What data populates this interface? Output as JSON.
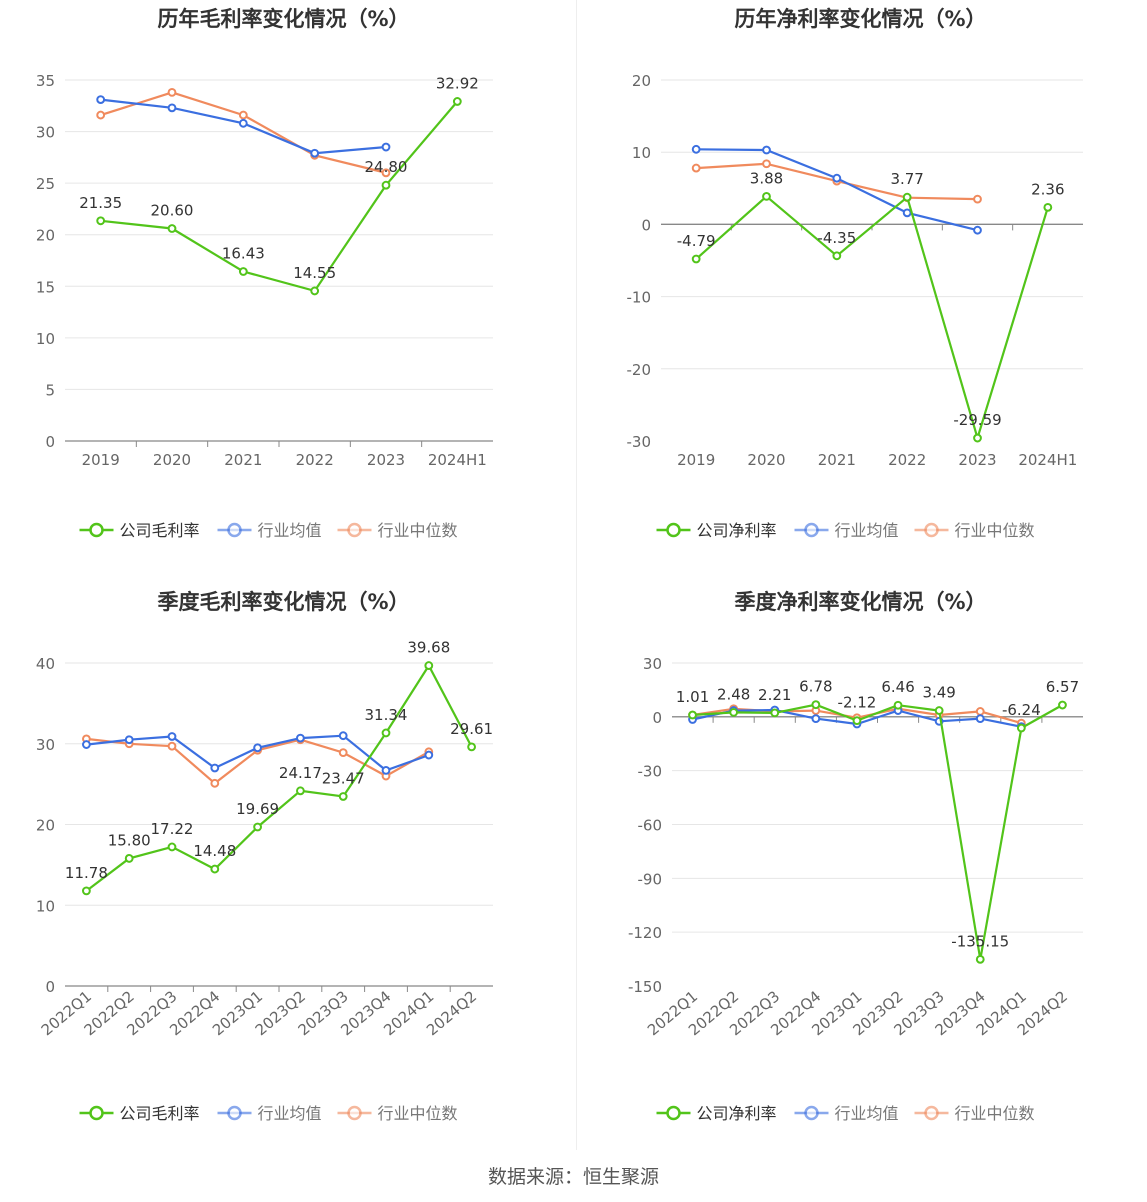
{
  "source": "数据来源：恒生聚源",
  "colors": {
    "company": "#52c41a",
    "industry_avg": "#3b6fe0",
    "industry_median": "#f08a5d"
  },
  "chart_data": [
    {
      "type": "line",
      "title": "历年毛利率变化情况（%）",
      "categories": [
        "2019",
        "2020",
        "2021",
        "2022",
        "2023",
        "2024H1"
      ],
      "ylim": [
        0,
        35
      ],
      "yticks": [
        0,
        5,
        10,
        15,
        20,
        25,
        30,
        35
      ],
      "x_label_rotated": false,
      "grid": true,
      "legend_position": "bottom",
      "series": [
        {
          "name": "公司毛利率",
          "key": "company",
          "values": [
            21.35,
            20.6,
            16.43,
            14.55,
            24.8,
            32.92
          ],
          "labels": [
            "21.35",
            "20.60",
            "16.43",
            "14.55",
            "24.80",
            "32.92"
          ]
        },
        {
          "name": "行业均值",
          "key": "industry_avg",
          "values": [
            33.1,
            32.3,
            30.8,
            27.9,
            28.5,
            null
          ]
        },
        {
          "name": "行业中位数",
          "key": "industry_median",
          "values": [
            31.6,
            33.8,
            31.6,
            27.7,
            26.0,
            null
          ]
        }
      ]
    },
    {
      "type": "line",
      "title": "历年净利率变化情况（%）",
      "categories": [
        "2019",
        "2020",
        "2021",
        "2022",
        "2023",
        "2024H1"
      ],
      "ylim": [
        -30,
        20
      ],
      "yticks": [
        -30,
        -20,
        -10,
        0,
        10,
        20
      ],
      "x_label_rotated": false,
      "grid": true,
      "legend_position": "bottom",
      "series": [
        {
          "name": "公司净利率",
          "key": "company",
          "values": [
            -4.79,
            3.88,
            -4.35,
            3.77,
            -29.59,
            2.36
          ],
          "labels": [
            "-4.79",
            "3.88",
            "-4.35",
            "3.77",
            "-29.59",
            "2.36"
          ]
        },
        {
          "name": "行业均值",
          "key": "industry_avg",
          "values": [
            10.4,
            10.3,
            6.4,
            1.6,
            -0.8,
            null
          ]
        },
        {
          "name": "行业中位数",
          "key": "industry_median",
          "values": [
            7.8,
            8.4,
            6.0,
            3.7,
            3.5,
            null
          ]
        }
      ]
    },
    {
      "type": "line",
      "title": "季度毛利率变化情况（%）",
      "categories": [
        "2022Q1",
        "2022Q2",
        "2022Q3",
        "2022Q4",
        "2023Q1",
        "2023Q2",
        "2023Q3",
        "2023Q4",
        "2024Q1",
        "2024Q2"
      ],
      "ylim": [
        0,
        40
      ],
      "yticks": [
        0,
        10,
        20,
        30,
        40
      ],
      "x_label_rotated": true,
      "grid": true,
      "legend_position": "bottom",
      "series": [
        {
          "name": "公司毛利率",
          "key": "company",
          "values": [
            11.78,
            15.8,
            17.22,
            14.48,
            19.69,
            24.17,
            23.47,
            31.34,
            39.68,
            29.61
          ],
          "labels": [
            "11.78",
            "15.80",
            "17.22",
            "14.48",
            "19.69",
            "24.17",
            "23.47",
            "31.34",
            "39.68",
            "29.61"
          ]
        },
        {
          "name": "行业均值",
          "key": "industry_avg",
          "values": [
            29.9,
            30.5,
            30.9,
            27.0,
            29.5,
            30.7,
            31.0,
            26.7,
            28.6,
            null
          ]
        },
        {
          "name": "行业中位数",
          "key": "industry_median",
          "values": [
            30.6,
            30.0,
            29.7,
            25.1,
            29.2,
            30.5,
            28.9,
            26.0,
            29.0,
            null
          ]
        }
      ]
    },
    {
      "type": "line",
      "title": "季度净利率变化情况（%）",
      "categories": [
        "2022Q1",
        "2022Q2",
        "2022Q3",
        "2022Q4",
        "2023Q1",
        "2023Q2",
        "2023Q3",
        "2023Q4",
        "2024Q1",
        "2024Q2"
      ],
      "ylim": [
        -150,
        30
      ],
      "yticks": [
        -150,
        -120,
        -90,
        -60,
        -30,
        0,
        30
      ],
      "x_label_rotated": true,
      "grid": true,
      "legend_position": "bottom",
      "series": [
        {
          "name": "公司净利率",
          "key": "company",
          "values": [
            1.01,
            2.48,
            2.21,
            6.78,
            -2.12,
            6.46,
            3.49,
            -135.15,
            -6.24,
            6.57
          ],
          "labels": [
            "1.01",
            "2.48",
            "2.21",
            "6.78",
            "-2.12",
            "6.46",
            "3.49",
            "-135.15",
            "-6.24",
            "6.57"
          ]
        },
        {
          "name": "行业均值",
          "key": "industry_avg",
          "values": [
            -1.5,
            3.5,
            3.8,
            -1.0,
            -4.0,
            3.5,
            -2.5,
            -1.0,
            -5.5,
            null
          ]
        },
        {
          "name": "行业中位数",
          "key": "industry_median",
          "values": [
            1.0,
            4.5,
            3.0,
            3.5,
            -0.5,
            4.5,
            1.0,
            3.0,
            -3.5,
            null
          ]
        }
      ]
    }
  ]
}
